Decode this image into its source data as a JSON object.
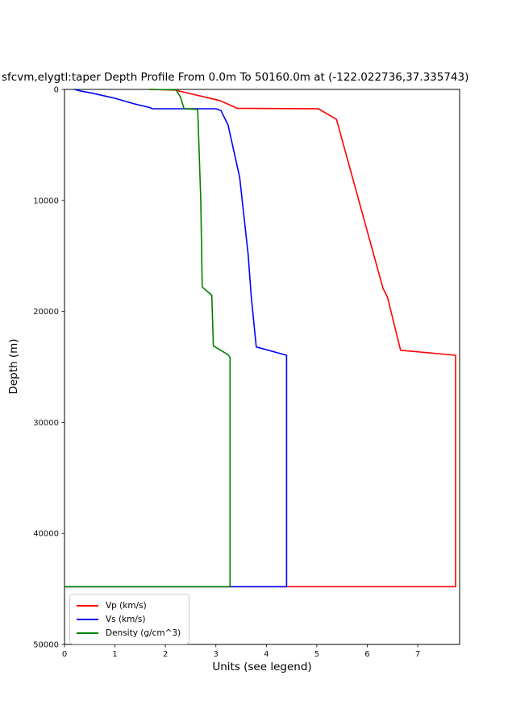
{
  "title": "sfcvm,elygtl:taper Depth Profile From 0.0m To 50160.0m at (-122.022736,37.335743)",
  "chart_data": {
    "type": "line",
    "title": "sfcvm,elygtl:taper Depth Profile From 0.0m To 50160.0m at (-122.022736,37.335743)",
    "xlabel": "Units (see legend)",
    "ylabel": "Depth (m)",
    "xlim": [
      0,
      7.83
    ],
    "ylim": [
      0,
      50000
    ],
    "y_inverted": true,
    "grid": false,
    "legend_position": "lower left",
    "xticks": [
      0,
      1,
      2,
      3,
      4,
      5,
      6,
      7
    ],
    "yticks": [
      0,
      10000,
      20000,
      30000,
      40000,
      50000
    ],
    "series": [
      {
        "name": "Vp (km/s)",
        "color": "#ff0000",
        "points": [
          [
            1.68,
            0
          ],
          [
            2.19,
            60
          ],
          [
            2.6,
            500
          ],
          [
            3.08,
            1000
          ],
          [
            3.42,
            1700
          ],
          [
            5.03,
            1740
          ],
          [
            5.39,
            2700
          ],
          [
            6.31,
            17900
          ],
          [
            6.4,
            18700
          ],
          [
            6.66,
            23500
          ],
          [
            7.75,
            23950
          ],
          [
            7.75,
            44800
          ],
          [
            0,
            44800
          ]
        ]
      },
      {
        "name": "Vs (km/s)",
        "color": "#0000ff",
        "points": [
          [
            0.2,
            0
          ],
          [
            0.3,
            120
          ],
          [
            0.56,
            350
          ],
          [
            1.0,
            800
          ],
          [
            1.38,
            1300
          ],
          [
            1.7,
            1650
          ],
          [
            1.73,
            1740
          ],
          [
            3.0,
            1740
          ],
          [
            3.1,
            1900
          ],
          [
            3.24,
            3200
          ],
          [
            3.47,
            7900
          ],
          [
            3.64,
            14900
          ],
          [
            3.7,
            18600
          ],
          [
            3.8,
            23200
          ],
          [
            4.4,
            23950
          ],
          [
            4.4,
            44800
          ],
          [
            0,
            44800
          ]
        ]
      },
      {
        "name": "Density (g/cm^3)",
        "color": "#008000",
        "points": [
          [
            1.68,
            0
          ],
          [
            2.21,
            40
          ],
          [
            2.3,
            700
          ],
          [
            2.37,
            1750
          ],
          [
            2.64,
            1800
          ],
          [
            2.7,
            10000
          ],
          [
            2.73,
            17800
          ],
          [
            2.92,
            18550
          ],
          [
            2.95,
            23100
          ],
          [
            3.24,
            23900
          ],
          [
            3.28,
            24150
          ],
          [
            3.28,
            44800
          ],
          [
            0,
            44800
          ]
        ]
      }
    ]
  }
}
